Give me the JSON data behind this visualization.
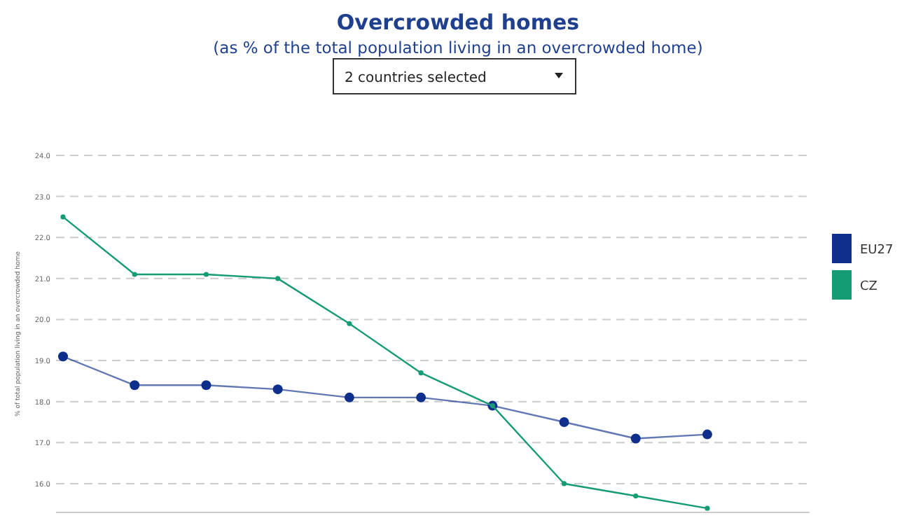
{
  "chart_data": {
    "type": "line",
    "title": "Overcrowded homes",
    "subtitle": "(as % of the total population living in an overcrowded home)",
    "annotations": [
      "2 countries selected"
    ],
    "ylabel": "% of total population living in an overcrowded home",
    "categories": [
      null,
      null,
      null,
      null,
      null,
      null,
      null,
      null,
      null,
      null
    ],
    "series": [
      {
        "name": "EU27",
        "color": "#0e2f8c",
        "values": [
          19.1,
          18.4,
          18.4,
          18.3,
          18.1,
          18.1,
          17.9,
          17.5,
          17.1,
          17.2
        ]
      },
      {
        "name": "CZ",
        "color": "#169c74",
        "values": [
          22.5,
          21.1,
          21.1,
          21.0,
          19.9,
          18.7,
          17.9,
          16.0,
          15.7,
          15.4
        ]
      }
    ],
    "ylim": [
      15.3,
      24.0
    ],
    "yticks": [
      {
        "value": 16,
        "label": "16.0"
      },
      {
        "value": 17,
        "label": "17.0"
      },
      {
        "value": 18,
        "label": "18.0"
      },
      {
        "value": 19,
        "label": "19.0"
      },
      {
        "value": 20,
        "label": "20.0"
      },
      {
        "value": 21,
        "label": "21.0"
      },
      {
        "value": 22,
        "label": "22.0"
      },
      {
        "value": 23,
        "label": "23.0"
      },
      {
        "value": 24,
        "label": "24.0"
      }
    ],
    "grid": "y",
    "legend": "right",
    "marker": "circle",
    "line_style": "solid"
  }
}
